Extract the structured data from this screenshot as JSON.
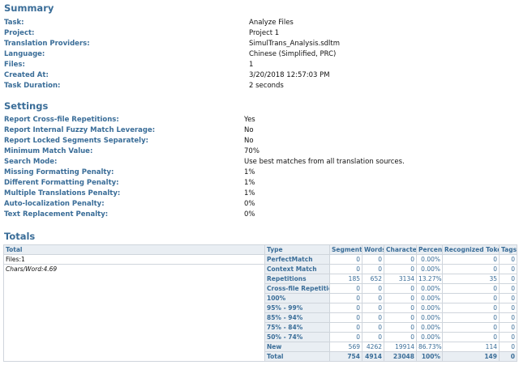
{
  "summary": {
    "title": "Summary",
    "rows": [
      {
        "label": "Task:",
        "value": "Analyze Files"
      },
      {
        "label": "Project:",
        "value": "Project 1"
      },
      {
        "label": "Translation Providers:",
        "value": "SimulTrans_Analysis.sdltm"
      },
      {
        "label": "Language:",
        "value": "Chinese (Simplified, PRC)"
      },
      {
        "label": "Files:",
        "value": "1"
      },
      {
        "label": "Created At:",
        "value": "3/20/2018 12:57:03 PM"
      },
      {
        "label": "Task Duration:",
        "value": "2 seconds"
      }
    ]
  },
  "settings": {
    "title": "Settings",
    "rows": [
      {
        "label": "Report Cross-file Repetitions:",
        "value": "Yes"
      },
      {
        "label": "Report Internal Fuzzy Match Leverage:",
        "value": "No"
      },
      {
        "label": "Report Locked Segments Separately:",
        "value": "No"
      },
      {
        "label": "Minimum Match Value:",
        "value": "70%"
      },
      {
        "label": "Search Mode:",
        "value": "Use best matches from all translation sources."
      },
      {
        "label": "Missing Formatting Penalty:",
        "value": "1%"
      },
      {
        "label": "Different Formatting Penalty:",
        "value": "1%"
      },
      {
        "label": "Multiple Translations Penalty:",
        "value": "1%"
      },
      {
        "label": "Auto-localization Penalty:",
        "value": "0%"
      },
      {
        "label": "Text Replacement Penalty:",
        "value": "0%"
      }
    ]
  },
  "totals": {
    "title": "Totals",
    "headers": {
      "total": "Total",
      "type": "Type",
      "segments": "Segments",
      "words": "Words",
      "characters": "Characters",
      "percent": "Percent",
      "recognized_tokens": "Recognized Tokens",
      "tags": "Tags"
    },
    "files_label": "Files:1",
    "chars_word_label": "Chars/Word:4.69",
    "rows": [
      {
        "type": "PerfectMatch",
        "segments": "0",
        "words": "0",
        "characters": "0",
        "percent": "0.00%",
        "tokens": "0",
        "tags": "0"
      },
      {
        "type": "Context Match",
        "segments": "0",
        "words": "0",
        "characters": "0",
        "percent": "0.00%",
        "tokens": "0",
        "tags": "0"
      },
      {
        "type": "Repetitions",
        "segments": "185",
        "words": "652",
        "characters": "3134",
        "percent": "13.27%",
        "tokens": "35",
        "tags": "0"
      },
      {
        "type": "Cross-file Repetitions",
        "segments": "0",
        "words": "0",
        "characters": "0",
        "percent": "0.00%",
        "tokens": "0",
        "tags": "0"
      },
      {
        "type": "100%",
        "segments": "0",
        "words": "0",
        "characters": "0",
        "percent": "0.00%",
        "tokens": "0",
        "tags": "0"
      },
      {
        "type": "95% - 99%",
        "segments": "0",
        "words": "0",
        "characters": "0",
        "percent": "0.00%",
        "tokens": "0",
        "tags": "0"
      },
      {
        "type": "85% - 94%",
        "segments": "0",
        "words": "0",
        "characters": "0",
        "percent": "0.00%",
        "tokens": "0",
        "tags": "0"
      },
      {
        "type": "75% - 84%",
        "segments": "0",
        "words": "0",
        "characters": "0",
        "percent": "0.00%",
        "tokens": "0",
        "tags": "0"
      },
      {
        "type": "50% - 74%",
        "segments": "0",
        "words": "0",
        "characters": "0",
        "percent": "0.00%",
        "tokens": "0",
        "tags": "0"
      },
      {
        "type": "New",
        "segments": "569",
        "words": "4262",
        "characters": "19914",
        "percent": "86.73%",
        "tokens": "114",
        "tags": "0"
      }
    ],
    "total_row": {
      "type": "Total",
      "segments": "754",
      "words": "4914",
      "characters": "23048",
      "percent": "100%",
      "tokens": "149",
      "tags": "0"
    }
  }
}
